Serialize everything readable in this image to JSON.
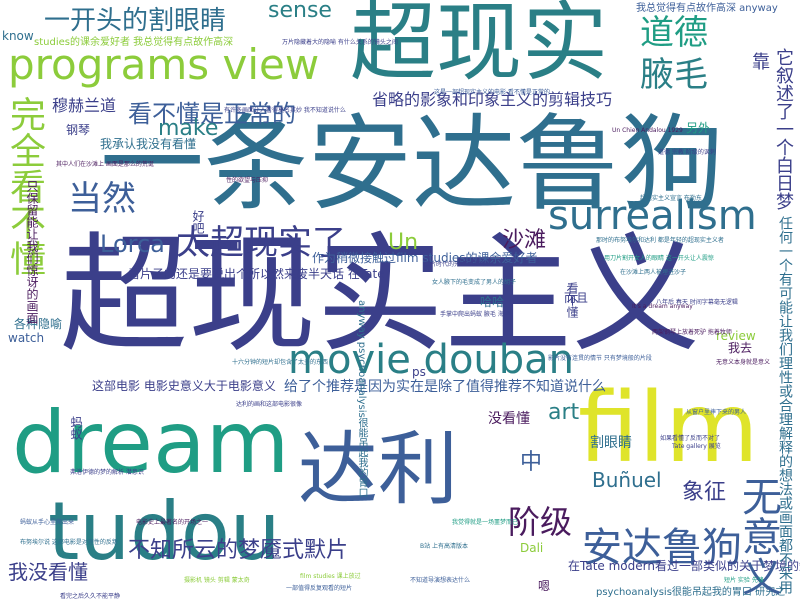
{
  "palette": {
    "indigo": "#3b3f8a",
    "purple": "#4a1b5e",
    "teal": "#2a7f86",
    "green": "#1f9d84",
    "lime": "#8ccc3b",
    "yellow": "#dfe42a",
    "blue": "#3d5f99"
  },
  "words": {
    "chaoxianshizhuyi": "超现实主义",
    "yitiaoandalugou": "一条安达鲁狗",
    "chaoxianshi": "超现实",
    "film": "film",
    "dream": "dream",
    "tudou": "tudou",
    "dali": "达利",
    "programs_view": "programs view",
    "movie_douban": "movie douban",
    "surrealism": "surrealism",
    "andalugou": "安达鲁狗",
    "wanquan_kanbudong": "完全看不懂",
    "wuyiyi": "无意义",
    "daode": "道德",
    "yemao": "腋毛",
    "dangran": "当然",
    "taichaoxianshile": "太超现实了",
    "yikaitou": "一开头的割眼睛",
    "kanbudong_zhengchang": "看不懂是正常的",
    "sense": "sense",
    "kao": "靠",
    "yige_baiRimeng": "它叙述了一个白日梦",
    "shenglue": "省略的影象和印象主义的剪辑技巧",
    "mohelandao": "穆赫兰道",
    "make": "make",
    "lorca": "Lorca",
    "un": "Un",
    "shatan": "沙滩",
    "art": "art",
    "jieji": "阶级",
    "zhong": "中",
    "xiangzheng": "象征",
    "bunuel": "Buñuel",
    "buzhisuoyun": "不知所云的梦魇式默片",
    "womeikandong": "我没看懂",
    "meikandong": "没看懂",
    "geyanjing": "割眼睛",
    "haha": "哈哈",
    "erqie": "而且",
    "kanbudong": "看不懂",
    "gangqin": "钢琴",
    "lingwai": "另外",
    "ps": "ps",
    "watch": "watch",
    "review": "review",
    "wochengren": "我承认我没有看懂",
    "hao_ba": "好吧",
    "gezhongyinyu": "各种隐喻",
    "woqu": "我去",
    "mayi": "蚂蚁",
    "dali_en": "Dali",
    "en": "嗯",
    "know": "know",
    "zhebudianying": "这部电影 电影史意义大于电影意义",
    "gei_tuijian": "给了个推荐是因为实在是除了值得推荐不知道说什么",
    "zuowei": "作为稍微接触过film studies的课余爱好者",
    "kanpianzi": "看片子的还是要说出个所以然来废半天话 在Tate",
    "zhibao": "只保留能让我们惊讶的画面",
    "renhe": "任何一个有可能让我们理性或合理解释的想法或画面都不采用",
    "psycho": "psychoanalysis很能吊起我的胃口 研究之",
    "tate_modern": "在Tate modern看过一部类似的关于梦境的短片",
    "anyway_psycho": "anyway psychoanalysis很能吊起我的胃口",
    "jueerde": "我总觉得有点故作高深 anyway",
    "studies_top": "studies的课余爱好者 我总觉得有点故作高深",
    "tiny_1": "万片隐藏着大的隐喻 有什么关系的镜头之间",
    "tiny_2": "有许多画面让人看得莫名其妙 我不知道说什么",
    "tiny_3": "其中人们在沙滩上 画面是那么的荒诞",
    "tiny_4": "这是一部超现实主义的电影 看不懂是正常的",
    "tiny_5": "那时的布努埃尔和达利 都是年轻的超现实主义者",
    "tiny_6": "用刀片割开女人的眼睛 这一开头让人震惊",
    "tiny_7": "手掌中爬出蚂蚁 腋毛 海胆",
    "tiny_8": "两架钢琴上放着死驴 拖着牧师",
    "tiny_9": "影片没有连贯的情节 只有梦境般的片段",
    "tiny_10": "十六分钟的短片却包含了太多的东西",
    "tiny_11": "弗洛伊德的梦的解析 潜意识",
    "tiny_12": "电影史上最著名的开场之一",
    "tiny_13": "布努埃尔说 这部电影是对理性的反叛",
    "tiny_14": "如果看懂了反而不对了",
    "tiny_15": "摄影机 镜头 剪辑 蒙太奇",
    "tiny_16": "一部值得反复观看的短片",
    "tiny_17": "无意义本身就是意义",
    "tiny_18": "超现实主义宣言 布勒东",
    "tiny_19": "默片时代的先锋实验电影",
    "tiny_20": "我觉得就是一场噩梦而已",
    "tiny_21": "Un Chien Andalou 1929",
    "tiny_22": "达利的画和这部电影很像",
    "tiny_23": "女人腋下的毛变成了男人的胡子",
    "tiny_24": "从窗户里摔下来的男人",
    "tiny_25": "八年后 春天 时间字幕毫无逻辑",
    "tiny_26": "性的欲望与压抑",
    "tiny_27": "在沙滩上两人被埋进沙子",
    "tiny_28": "看完之后久久不能平静",
    "tiny_29": "不知道导演想表达什么",
    "tiny_30": "film studies 课上放过",
    "tiny_31": "B站 上有高清版本",
    "tiny_32": "It's a dream anyway",
    "tiny_33": "Tate gallery 展览",
    "tiny_34": "短片 实验 先锋",
    "tiny_35": "蚂蚁从手心里爬出来",
    "tiny_36": "道德 宗教 阶级的讽刺"
  }
}
